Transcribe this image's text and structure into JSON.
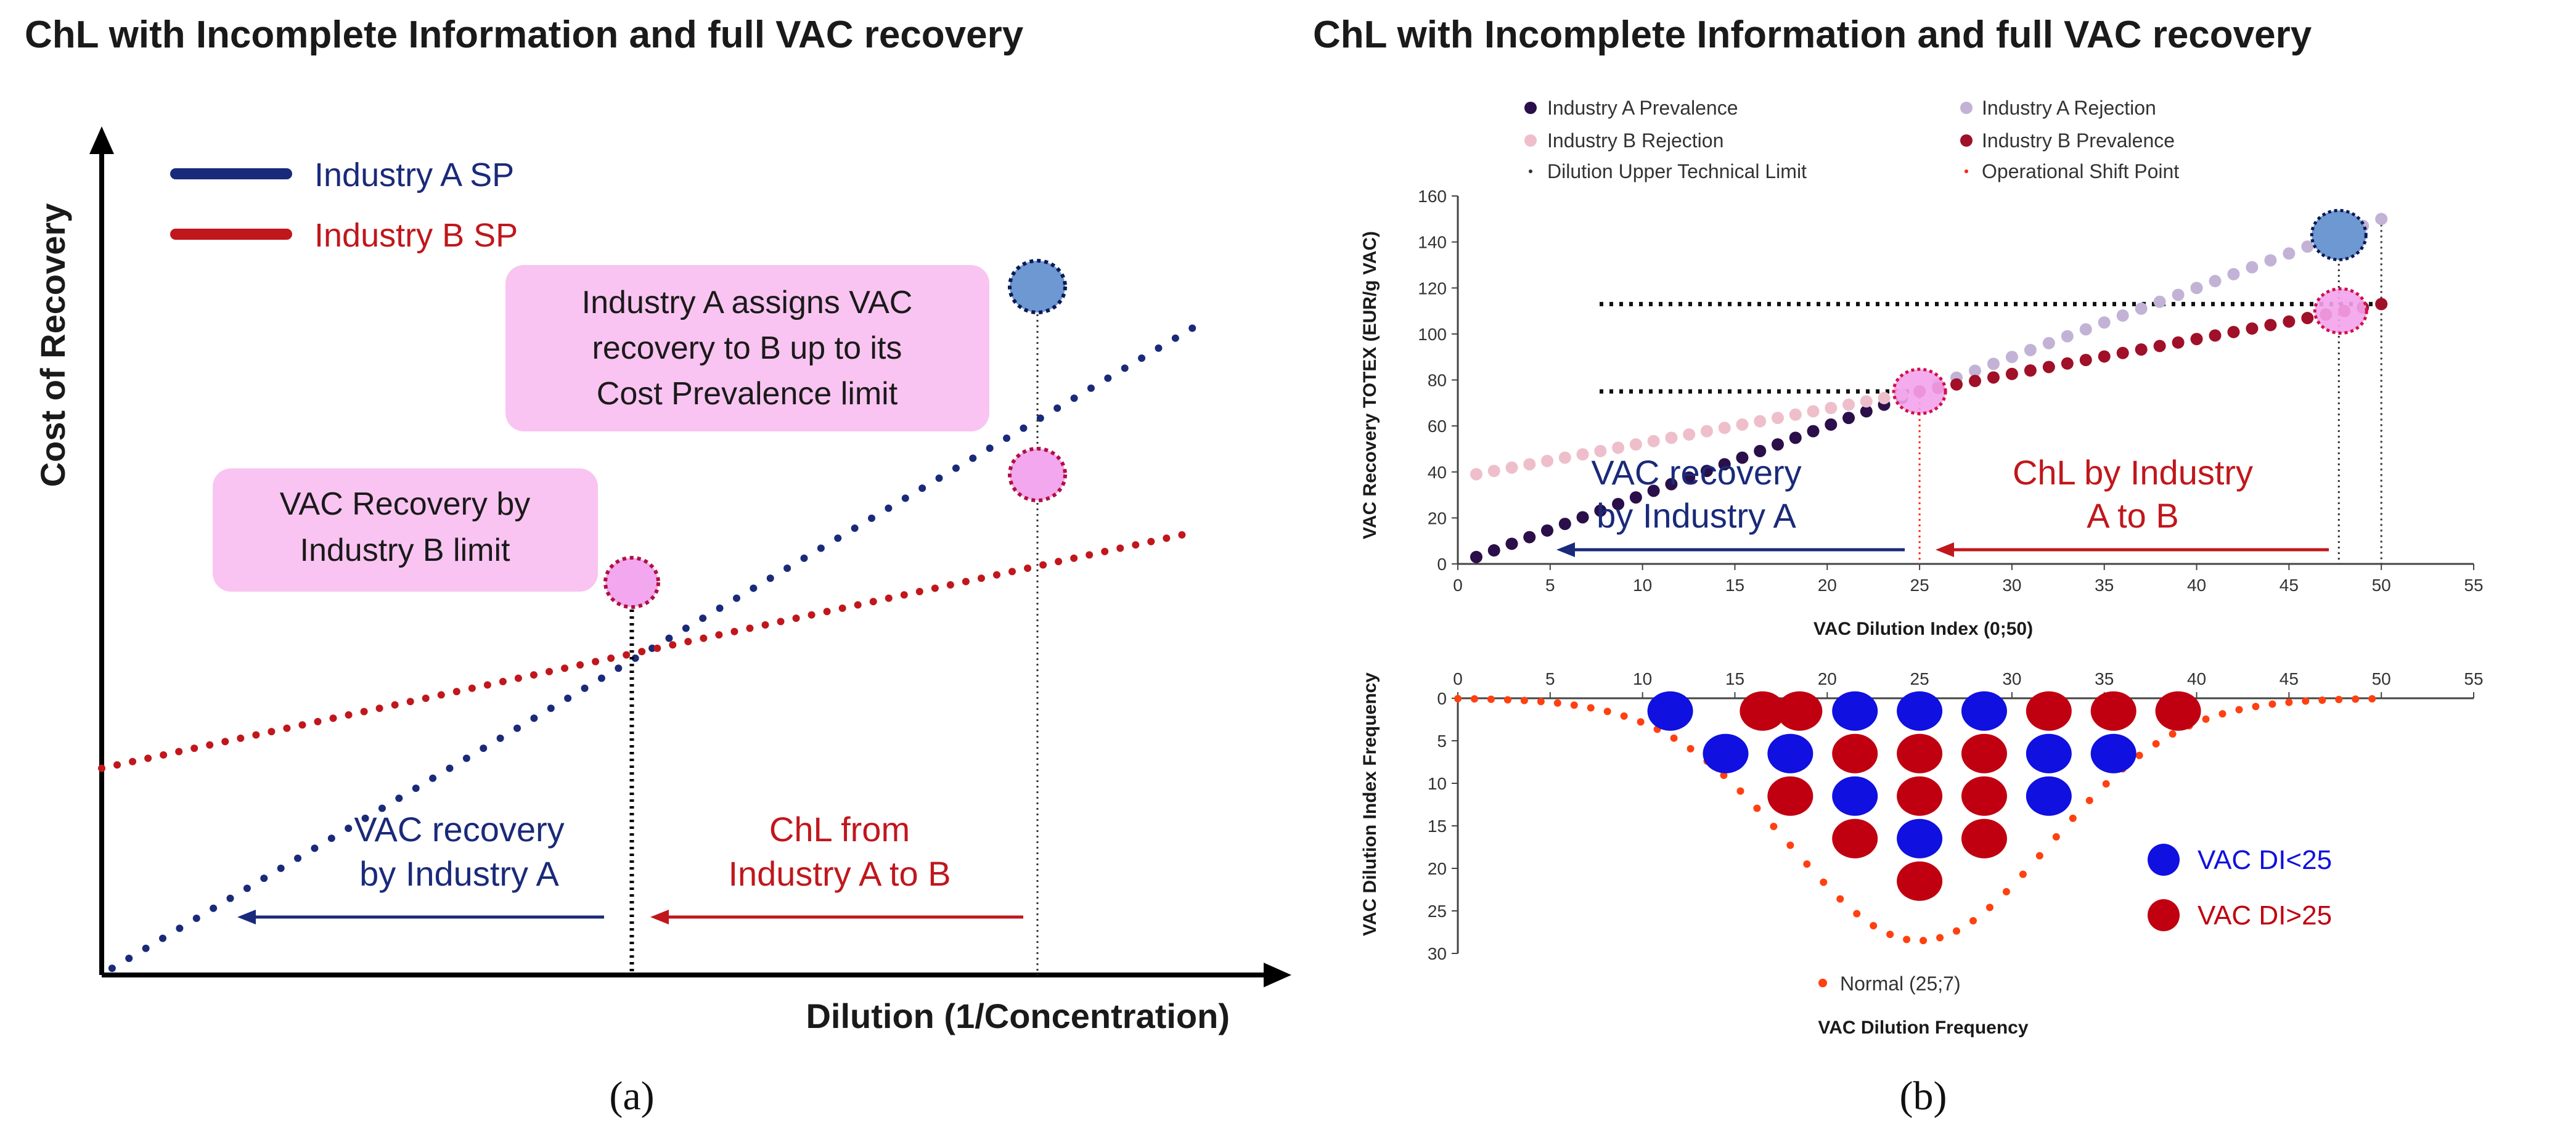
{
  "panel_a": {
    "title": "ChL with Incomplete Information and full VAC recovery",
    "label": "(a)",
    "y_axis_label": "Cost of Recovery",
    "x_axis_label": "Dilution (1/Concentration)",
    "callout_top": [
      "Industry A assigns VAC",
      "recovery to B up to its",
      "Cost Prevalence limit"
    ],
    "callout_left": [
      "VAC Recovery by",
      "Industry B limit"
    ],
    "arrow_left_text": [
      "VAC recovery",
      "by Industry A"
    ],
    "arrow_right_text": [
      "ChL from",
      "Industry A to B"
    ]
  },
  "panel_b": {
    "title": "ChL with Incomplete Information and full VAC recovery",
    "label": "(b)",
    "arrow_left_text": [
      "VAC recovery",
      "by Industry A"
    ],
    "arrow_right_text": [
      "ChL by Industry",
      "A to B"
    ]
  },
  "colors": {
    "industry_a": "#1a2a7a",
    "industry_b": "#c0171c",
    "a_prevalence": "#2a0f4a",
    "a_rejection": "#c2b3d6",
    "b_rejection": "#eebfcb",
    "b_prevalence": "#a01028",
    "freq_blue": "#1010e0",
    "freq_red": "#c00010",
    "normal": "#ff4010",
    "callout_fill": "#f9c4f1"
  },
  "chart_data": [
    {
      "type": "line",
      "title": "ChL with Incomplete Information and full VAC recovery",
      "xlabel": "Dilution (1/Concentration)",
      "ylabel": "Cost of Recovery",
      "xlim": [
        0,
        10
      ],
      "ylim": [
        0,
        10
      ],
      "legend": "top-left",
      "series": [
        {
          "name": "Industry A SP",
          "x": [
            0.1,
            10.5
          ],
          "y": [
            0.1,
            9.7
          ]
        },
        {
          "name": "Industry B SP",
          "x": [
            0,
            10.4
          ],
          "y": [
            3.1,
            6.6
          ]
        }
      ]
    },
    {
      "type": "scatter",
      "title": "",
      "xlabel": "VAC Dilution Index (0;50)",
      "ylabel": "VAC Recovery TOTEX (EUR/g VAC)",
      "xlim": [
        0,
        55
      ],
      "ylim": [
        0,
        160
      ],
      "xticks": [
        0,
        5,
        10,
        15,
        20,
        25,
        30,
        35,
        40,
        45,
        50,
        55
      ],
      "yticks": [
        0,
        20,
        40,
        60,
        80,
        100,
        120,
        140,
        160
      ],
      "legend": "top",
      "legend_entries": [
        "Industry A Prevalence",
        "Industry A Rejection",
        "Industry B Rejection",
        "Industry B Prevalence",
        "Dilution Upper Technical Limit",
        "Operational Shift Point"
      ],
      "series": [
        {
          "name": "Industry A Prevalence",
          "x": [
            1,
            25
          ],
          "y": [
            3,
            75
          ]
        },
        {
          "name": "Industry A Rejection",
          "x": [
            25,
            50
          ],
          "y": [
            75,
            150
          ]
        },
        {
          "name": "Industry B Rejection",
          "x": [
            1,
            25
          ],
          "y": [
            39,
            75
          ]
        },
        {
          "name": "Industry B Prevalence",
          "x": [
            25,
            50
          ],
          "y": [
            75,
            113
          ]
        }
      ],
      "markers": {
        "dilution_upper_technical_limit_x": 50,
        "operational_shift_point_x": 25
      }
    },
    {
      "type": "scatter",
      "title": "",
      "xlabel": "VAC Dilution Frequency",
      "ylabel": "VAC Dilution Index Frequency",
      "xlim": [
        0,
        55
      ],
      "ylim": [
        0,
        30
      ],
      "xticks": [
        0,
        5,
        10,
        15,
        20,
        25,
        30,
        35,
        40,
        45,
        50,
        55
      ],
      "yticks": [
        0,
        5,
        10,
        15,
        20,
        25,
        30
      ],
      "legend": "right",
      "legend_entries": [
        "VAC DI<25",
        "VAC DI>25",
        "Normal (25;7)"
      ],
      "normal": {
        "mean": 25,
        "sd": 7,
        "label": "Normal (25;7)"
      },
      "circles": [
        {
          "x": 11.5,
          "y": 1.5,
          "cls": "lt"
        },
        {
          "x": 16.5,
          "y": 1.5,
          "cls": "gt"
        },
        {
          "x": 18.5,
          "y": 1.5,
          "cls": "gt"
        },
        {
          "x": 21.5,
          "y": 1.5,
          "cls": "lt"
        },
        {
          "x": 25,
          "y": 1.5,
          "cls": "lt"
        },
        {
          "x": 28.5,
          "y": 1.5,
          "cls": "lt"
        },
        {
          "x": 32,
          "y": 1.5,
          "cls": "gt"
        },
        {
          "x": 35.5,
          "y": 1.5,
          "cls": "gt"
        },
        {
          "x": 39,
          "y": 1.5,
          "cls": "gt"
        },
        {
          "x": 14.5,
          "y": 6.5,
          "cls": "lt"
        },
        {
          "x": 18,
          "y": 6.5,
          "cls": "lt"
        },
        {
          "x": 21.5,
          "y": 6.5,
          "cls": "gt"
        },
        {
          "x": 25,
          "y": 6.5,
          "cls": "gt"
        },
        {
          "x": 28.5,
          "y": 6.5,
          "cls": "gt"
        },
        {
          "x": 32,
          "y": 6.5,
          "cls": "lt"
        },
        {
          "x": 35.5,
          "y": 6.5,
          "cls": "lt"
        },
        {
          "x": 18,
          "y": 11.5,
          "cls": "gt"
        },
        {
          "x": 21.5,
          "y": 11.5,
          "cls": "lt"
        },
        {
          "x": 25,
          "y": 11.5,
          "cls": "gt"
        },
        {
          "x": 28.5,
          "y": 11.5,
          "cls": "gt"
        },
        {
          "x": 32,
          "y": 11.5,
          "cls": "lt"
        },
        {
          "x": 21.5,
          "y": 16.5,
          "cls": "gt"
        },
        {
          "x": 25,
          "y": 16.5,
          "cls": "lt"
        },
        {
          "x": 28.5,
          "y": 16.5,
          "cls": "gt"
        },
        {
          "x": 25,
          "y": 21.5,
          "cls": "gt"
        }
      ]
    }
  ]
}
